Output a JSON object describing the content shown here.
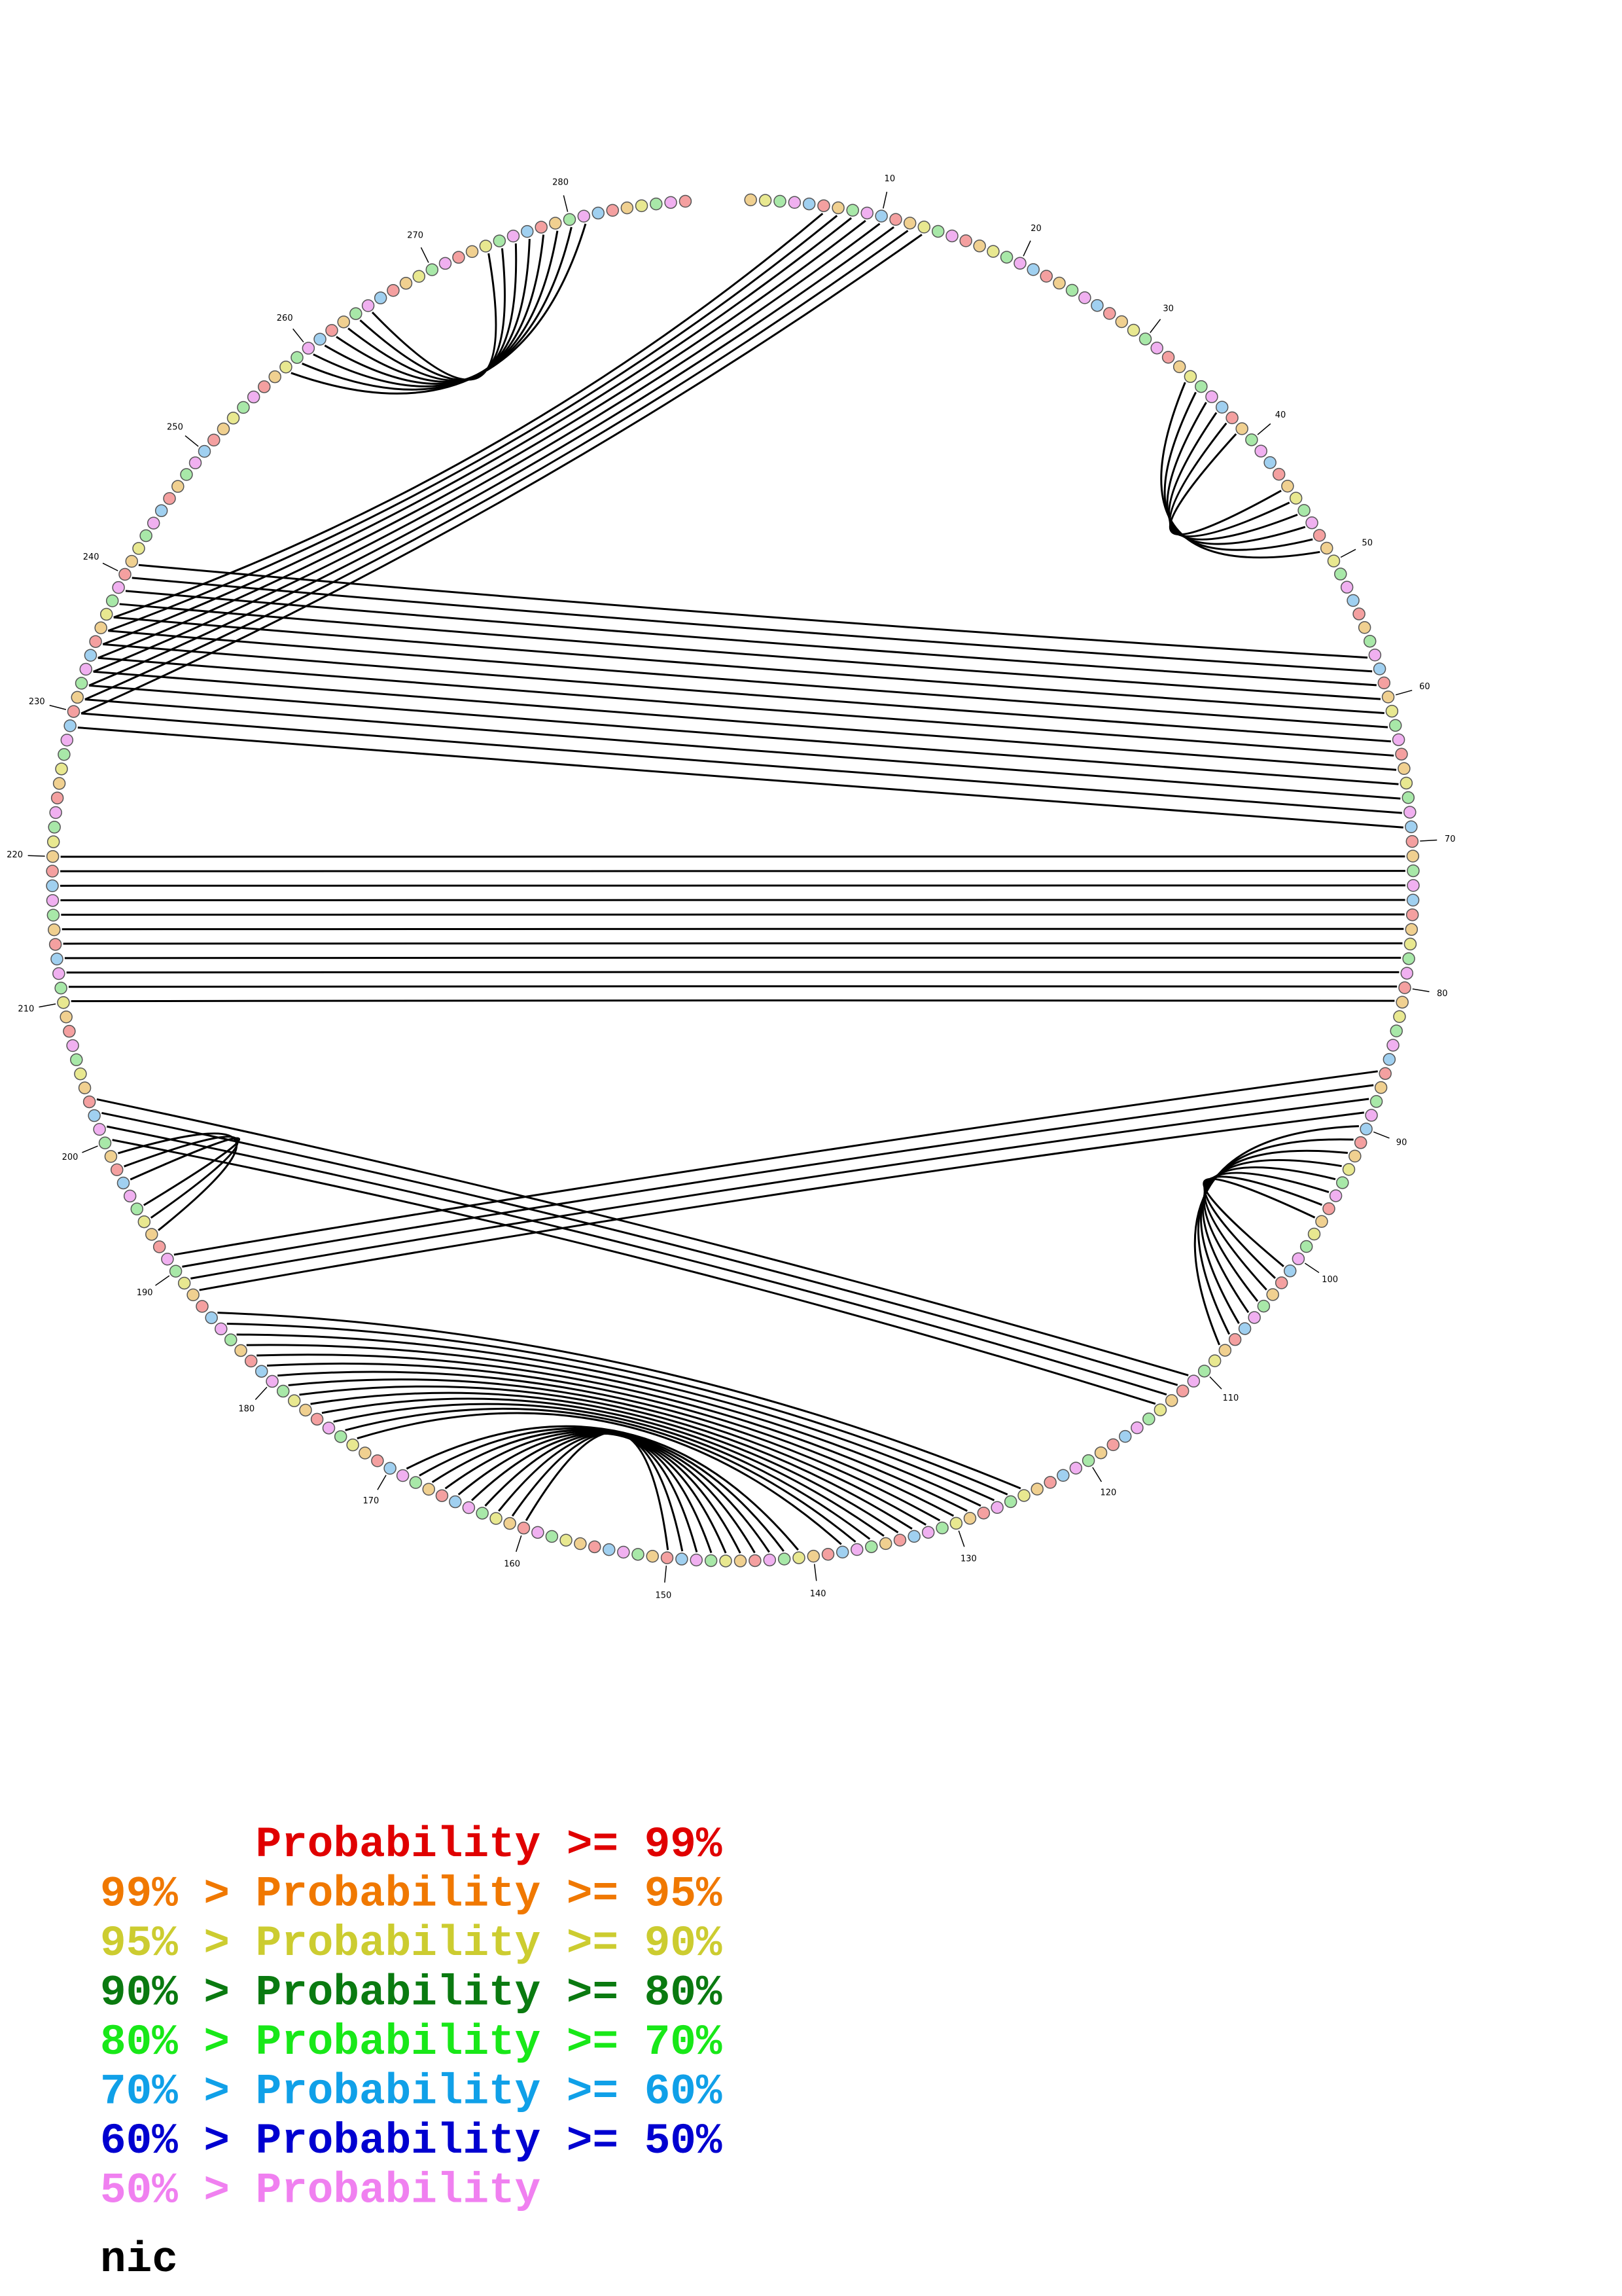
{
  "ticks": [
    10,
    20,
    30,
    40,
    50,
    60,
    70,
    80,
    90,
    100,
    110,
    120,
    130,
    140,
    150,
    160,
    170,
    180,
    190,
    200,
    210,
    220,
    230,
    240,
    250,
    260,
    270,
    280
  ],
  "legend": [
    {
      "label": "Probability >= 99%",
      "color": "#e00000"
    },
    {
      "prefix": "99% >",
      "label": "Probability >= 95%",
      "color": "#f07800"
    },
    {
      "prefix": "95% >",
      "label": "Probability >= 90%",
      "color": "#cccc30"
    },
    {
      "prefix": "90% >",
      "label": "Probability >= 80%",
      "color": "#0a7a10"
    },
    {
      "prefix": "80% >",
      "label": "Probability >= 70%",
      "color": "#18e818"
    },
    {
      "prefix": "70% >",
      "label": "Probability >= 60%",
      "color": "#10a0e8"
    },
    {
      "prefix": "60% >",
      "label": "Probability >= 50%",
      "color": "#0000d0"
    },
    {
      "prefix": "50% >",
      "label": "Probability",
      "color": "#f080f0"
    }
  ],
  "name": "nic"
}
